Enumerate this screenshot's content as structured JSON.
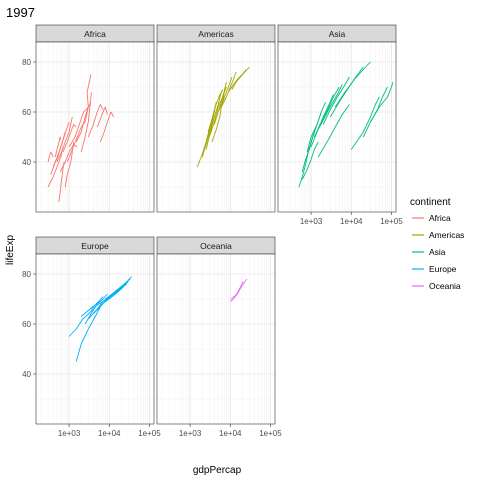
{
  "chart_data": {
    "type": "line",
    "title": "1997",
    "xlabel": "gdpPercap",
    "ylabel": "lifeExp",
    "x_scale": "log10",
    "xlim": [
      150,
      130000
    ],
    "ylim": [
      20,
      88
    ],
    "x_ticks": [
      1000,
      10000,
      100000
    ],
    "x_tick_labels": [
      "1e+03",
      "1e+04",
      "1e+05"
    ],
    "y_ticks": [
      40,
      60,
      80
    ],
    "y_tick_labels": [
      "40",
      "60",
      "80"
    ],
    "grid": true,
    "legend": {
      "title": "continent",
      "position": "right"
    },
    "facets": [
      {
        "name": "Africa",
        "color": "#F8766D",
        "series": [
          {
            "x": [
              300,
              400,
              500,
              620,
              700
            ],
            "y": [
              30,
              34,
              38,
              42,
              46
            ]
          },
          {
            "x": [
              350,
              450,
              560,
              680,
              800
            ],
            "y": [
              35,
              40,
              44,
              48,
              52
            ]
          },
          {
            "x": [
              400,
              520,
              650,
              820,
              1000
            ],
            "y": [
              38,
              42,
              47,
              52,
              56
            ]
          },
          {
            "x": [
              500,
              650,
              800,
              1000,
              1200
            ],
            "y": [
              40,
              44,
              48,
              52,
              58
            ]
          },
          {
            "x": [
              450,
              500,
              560,
              600,
              620
            ],
            "y": [
              42,
              45,
              48,
              50,
              49
            ]
          },
          {
            "x": [
              600,
              800,
              1000,
              1300,
              1600
            ],
            "y": [
              36,
              40,
              44,
              47,
              46
            ]
          },
          {
            "x": [
              700,
              900,
              1100,
              1300,
              1500
            ],
            "y": [
              44,
              48,
              52,
              55,
              54
            ]
          },
          {
            "x": [
              900,
              1200,
              1600,
              2000,
              2500
            ],
            "y": [
              40,
              45,
              50,
              54,
              56
            ]
          },
          {
            "x": [
              1000,
              1400,
              1800,
              2300,
              3000
            ],
            "y": [
              46,
              50,
              55,
              60,
              62
            ]
          },
          {
            "x": [
              1500,
              2000,
              2500,
              3000,
              3500
            ],
            "y": [
              48,
              52,
              58,
              62,
              64
            ]
          },
          {
            "x": [
              2000,
              2500,
              3000,
              3300,
              3600
            ],
            "y": [
              44,
              50,
              56,
              62,
              68
            ]
          },
          {
            "x": [
              2500,
              3000,
              2800,
              3200,
              3500
            ],
            "y": [
              56,
              62,
              68,
              72,
              75
            ]
          },
          {
            "x": [
              3000,
              4000,
              5000,
              6000,
              7000
            ],
            "y": [
              50,
              55,
              60,
              63,
              61
            ]
          },
          {
            "x": [
              5000,
              6000,
              7000,
              8000,
              9000
            ],
            "y": [
              54,
              57,
              60,
              62,
              59
            ]
          },
          {
            "x": [
              6000,
              7500,
              9000,
              11000,
              13000
            ],
            "y": [
              48,
              52,
              56,
              60,
              58
            ]
          },
          {
            "x": [
              800,
              900,
              1100,
              1200,
              1300
            ],
            "y": [
              30,
              35,
              40,
              44,
              48
            ]
          },
          {
            "x": [
              300,
              320,
              350,
              380,
              400
            ],
            "y": [
              40,
              42,
              44,
              43,
              42
            ]
          },
          {
            "x": [
              550,
              600,
              650,
              700,
              750
            ],
            "y": [
              24,
              28,
              33,
              37,
              40
            ]
          }
        ]
      },
      {
        "name": "Americas",
        "color": "#A3A500",
        "series": [
          {
            "x": [
              1500,
              2000,
              2500,
              3000,
              3500
            ],
            "y": [
              38,
              43,
              48,
              53,
              57
            ]
          },
          {
            "x": [
              2000,
              2600,
              3300,
              4000,
              4500
            ],
            "y": [
              42,
              48,
              54,
              60,
              64
            ]
          },
          {
            "x": [
              2500,
              3200,
              4000,
              5000,
              6000
            ],
            "y": [
              45,
              52,
              58,
              63,
              68
            ]
          },
          {
            "x": [
              3000,
              4000,
              5000,
              6500,
              8000
            ],
            "y": [
              50,
              56,
              62,
              66,
              70
            ]
          },
          {
            "x": [
              4000,
              5000,
              6000,
              7000,
              8000
            ],
            "y": [
              55,
              60,
              64,
              68,
              72
            ]
          },
          {
            "x": [
              5000,
              6500,
              8000,
              9500,
              11000
            ],
            "y": [
              60,
              64,
              68,
              71,
              74
            ]
          },
          {
            "x": [
              6000,
              8000,
              10000,
              12000,
              14000
            ],
            "y": [
              62,
              66,
              70,
              73,
              76
            ]
          },
          {
            "x": [
              9000,
              12000,
              15000,
              20000,
              25000
            ],
            "y": [
              68,
              71,
              73,
              75,
              77
            ]
          },
          {
            "x": [
              11000,
              14000,
              18000,
              23000,
              30000
            ],
            "y": [
              69,
              72,
              74,
              76,
              78
            ]
          },
          {
            "x": [
              3500,
              4500,
              5500,
              6000,
              7000
            ],
            "y": [
              48,
              53,
              58,
              62,
              67
            ]
          },
          {
            "x": [
              2800,
              3500,
              4200,
              5200,
              6500
            ],
            "y": [
              52,
              57,
              62,
              66,
              69
            ]
          }
        ]
      },
      {
        "name": "Asia",
        "color": "#00BF7D",
        "series": [
          {
            "x": [
              500,
              600,
              700,
              800,
              900
            ],
            "y": [
              30,
              34,
              38,
              42,
              46
            ]
          },
          {
            "x": [
              600,
              700,
              850,
              1000,
              1200
            ],
            "y": [
              36,
              40,
              44,
              48,
              52
            ]
          },
          {
            "x": [
              700,
              900,
              1100,
              1400,
              1800
            ],
            "y": [
              40,
              45,
              50,
              55,
              60
            ]
          },
          {
            "x": [
              800,
              1000,
              1400,
              1800,
              2300
            ],
            "y": [
              44,
              50,
              55,
              60,
              64
            ]
          },
          {
            "x": [
              1000,
              1400,
              2000,
              2800,
              3600
            ],
            "y": [
              46,
              52,
              58,
              63,
              67
            ]
          },
          {
            "x": [
              1200,
              1800,
              2600,
              3600,
              5000
            ],
            "y": [
              50,
              56,
              61,
              66,
              70
            ]
          },
          {
            "x": [
              1500,
              2200,
              3200,
              4500,
              6000
            ],
            "y": [
              53,
              58,
              63,
              67,
              71
            ]
          },
          {
            "x": [
              2000,
              3000,
              4500,
              6500,
              9000
            ],
            "y": [
              55,
              61,
              66,
              70,
              74
            ]
          },
          {
            "x": [
              3000,
              5000,
              8000,
              13000,
              20000
            ],
            "y": [
              58,
              64,
              69,
              74,
              78
            ]
          },
          {
            "x": [
              4000,
              7000,
              12000,
              20000,
              30000
            ],
            "y": [
              62,
              68,
              73,
              77,
              80
            ]
          },
          {
            "x": [
              30000,
              50000,
              80000,
              100000,
              110000
            ],
            "y": [
              56,
              62,
              66,
              70,
              72
            ]
          },
          {
            "x": [
              20000,
              30000,
              45000,
              60000,
              80000
            ],
            "y": [
              50,
              56,
              61,
              66,
              70
            ]
          },
          {
            "x": [
              10000,
              20000,
              30000,
              40000,
              50000
            ],
            "y": [
              45,
              52,
              58,
              63,
              66
            ]
          },
          {
            "x": [
              1500,
              2500,
              4000,
              6000,
              9000
            ],
            "y": [
              42,
              48,
              54,
              59,
              63
            ]
          },
          {
            "x": [
              600,
              800,
              1000,
              1200,
              1500
            ],
            "y": [
              33,
              37,
              41,
              45,
              48
            ]
          }
        ]
      },
      {
        "name": "Europe",
        "color": "#00B0F6",
        "series": [
          {
            "x": [
              1500,
              2000,
              3000,
              4500,
              6000
            ],
            "y": [
              45,
              52,
              58,
              63,
              67
            ]
          },
          {
            "x": [
              1000,
              1500,
              2200,
              3000,
              4000
            ],
            "y": [
              55,
              58,
              62,
              64,
              66
            ]
          },
          {
            "x": [
              2500,
              3500,
              5000,
              7000,
              9000
            ],
            "y": [
              60,
              64,
              68,
              70,
              72
            ]
          },
          {
            "x": [
              3000,
              5000,
              7000,
              10000,
              14000
            ],
            "y": [
              62,
              66,
              69,
              71,
              73
            ]
          },
          {
            "x": [
              4000,
              6000,
              9000,
              13000,
              18000
            ],
            "y": [
              64,
              67,
              70,
              72,
              74
            ]
          },
          {
            "x": [
              5000,
              8000,
              12000,
              17000,
              23000
            ],
            "y": [
              66,
              69,
              71,
              73,
              75
            ]
          },
          {
            "x": [
              6000,
              9000,
              13000,
              19000,
              27000
            ],
            "y": [
              67,
              70,
              72,
              74,
              76
            ]
          },
          {
            "x": [
              7000,
              10000,
              15000,
              22000,
              30000
            ],
            "y": [
              69,
              71,
              73,
              75,
              77
            ]
          },
          {
            "x": [
              8000,
              12000,
              17000,
              24000,
              33000
            ],
            "y": [
              70,
              72,
              74,
              76,
              78
            ]
          },
          {
            "x": [
              10000,
              14000,
              20000,
              28000,
              36000
            ],
            "y": [
              71,
              73,
              75,
              77,
              79
            ]
          },
          {
            "x": [
              2000,
              2800,
              4000,
              5500,
              7000
            ],
            "y": [
              63,
              65,
              67,
              69,
              71
            ]
          },
          {
            "x": [
              3500,
              4500,
              5500,
              7000,
              9000
            ],
            "y": [
              66,
              67,
              68,
              69,
              70
            ]
          }
        ]
      },
      {
        "name": "Oceania",
        "color": "#E76BF3",
        "series": [
          {
            "x": [
              10000,
              12000,
              15000,
              19000,
              26000
            ],
            "y": [
              69,
              70,
              72,
              75,
              78
            ]
          },
          {
            "x": [
              10500,
              12500,
              14500,
              17000,
              21000
            ],
            "y": [
              70,
              71,
              72,
              74,
              77
            ]
          }
        ]
      }
    ]
  }
}
